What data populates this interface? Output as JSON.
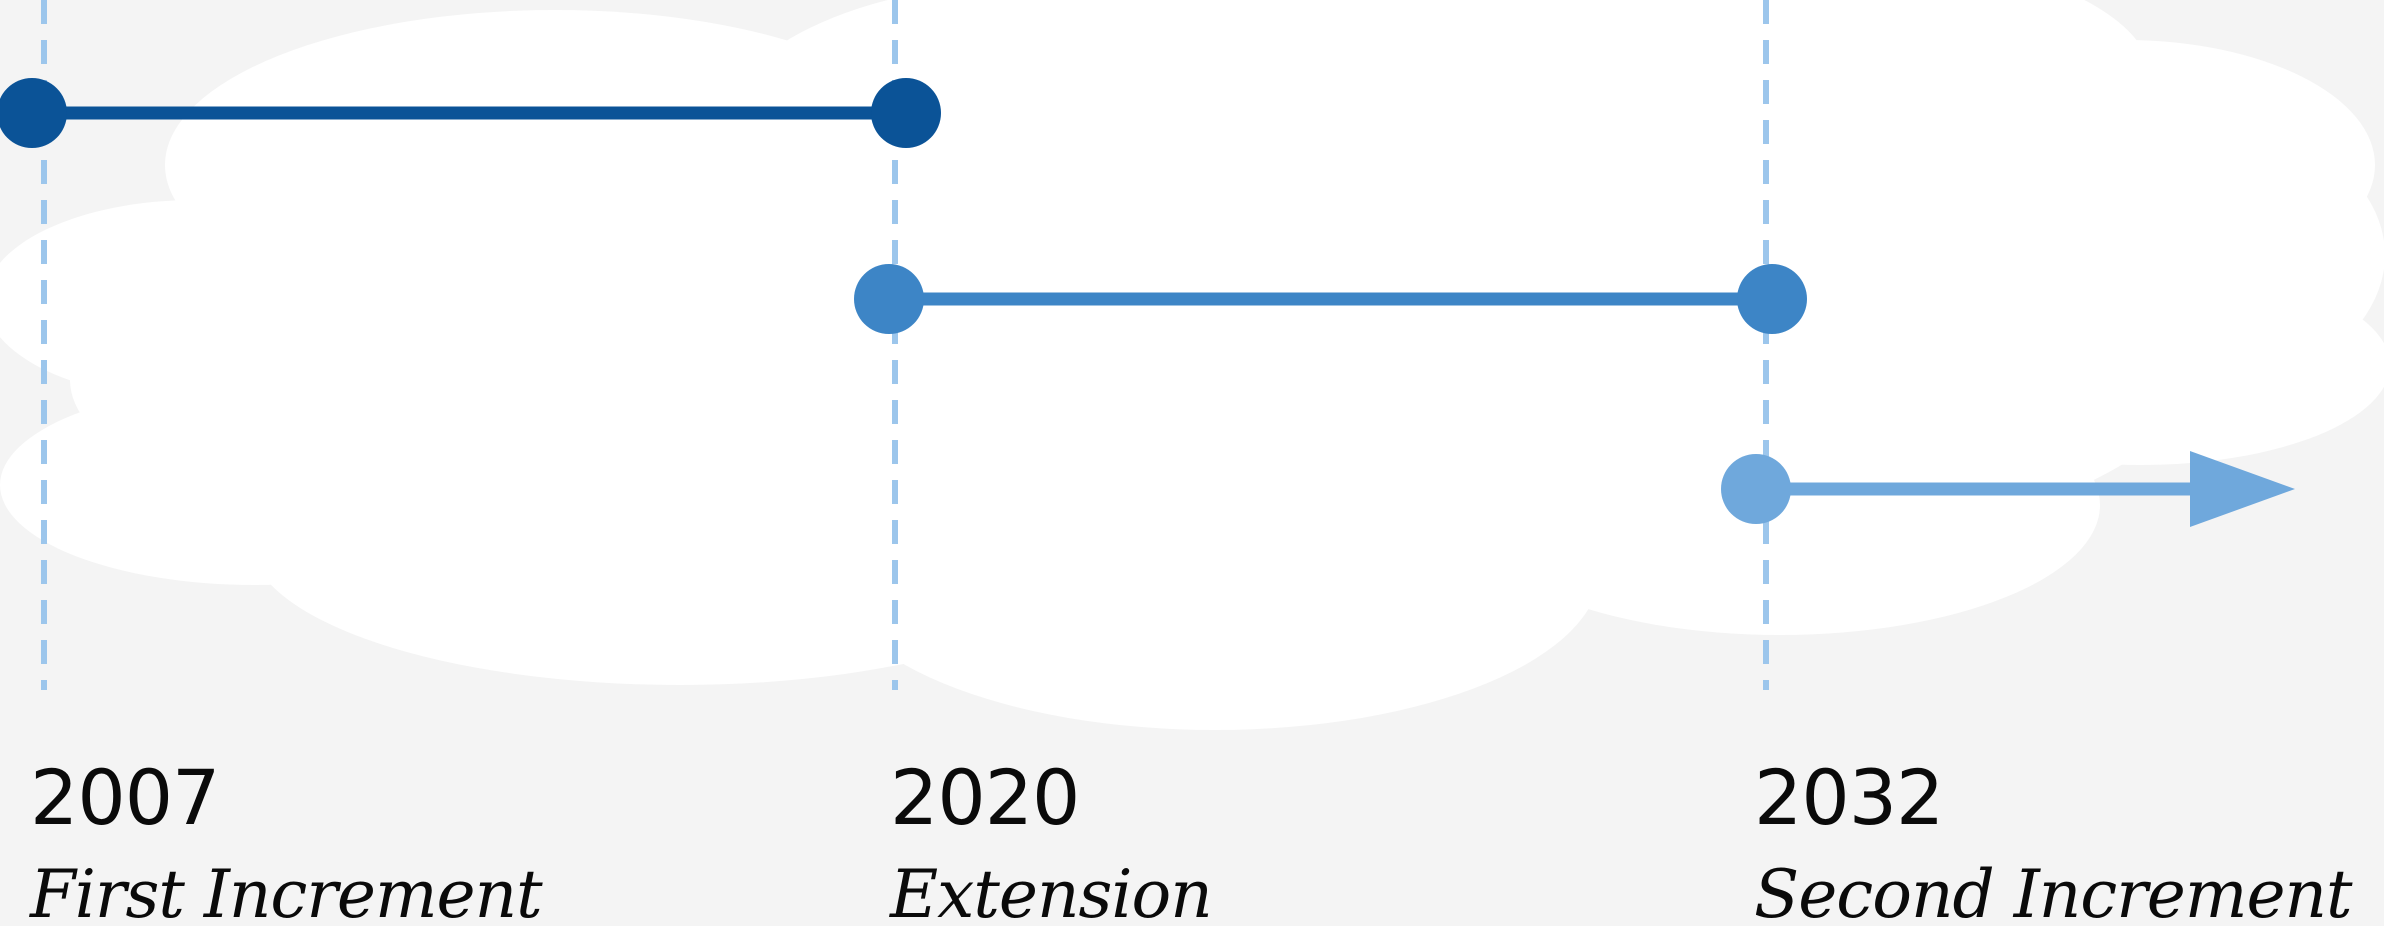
{
  "milestones": [
    {
      "year": "2007",
      "label": "First Increment"
    },
    {
      "year": "2020",
      "label": "Extension"
    },
    {
      "year": "2032",
      "label": "Second Increment"
    }
  ],
  "colors": {
    "background": "#f4f4f4",
    "cloud": "#ffffff",
    "guide_line": "#9cc6ec",
    "segment_1": "#0b5397",
    "segment_2": "#3d85c6",
    "segment_3": "#6fa8dc",
    "text": "#0a0a0a"
  },
  "segments": [
    {
      "from": "2007",
      "to": "2020",
      "type": "ended"
    },
    {
      "from": "2020",
      "to": "2032",
      "type": "ended"
    },
    {
      "from": "2032",
      "to": null,
      "type": "open-ended arrow"
    }
  ]
}
